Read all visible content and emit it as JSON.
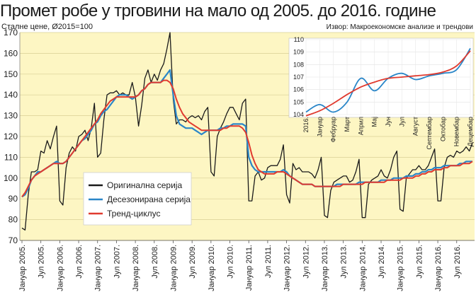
{
  "title": "Промет робе у трговини на мало од 2005. до 2016. године",
  "subtitle": "Сталне цене, Ø2015=100",
  "source": "Извор: Макроекономске анализе и трендови",
  "colors": {
    "plot_bg": "#fdf6c3",
    "original": "#1a1a1a",
    "seasonal": "#2a86c8",
    "trend": "#e03a2f"
  },
  "chart_data": [
    {
      "type": "line",
      "title": "",
      "ylim": [
        70,
        170
      ],
      "yticks": [
        70,
        80,
        90,
        100,
        110,
        120,
        130,
        140,
        150,
        160,
        170
      ],
      "x_start": "2005-01",
      "xtick_labels": [
        "Јануар 2005.",
        "Јул 2005.",
        "Јануар 2006.",
        "Јул 2006.",
        "Јануар 2007.",
        "Јул 2007.",
        "Јануар 2008.",
        "Јул 2008.",
        "Јануар 2009.",
        "Јул 2009.",
        "Јануар 2010.",
        "Јул 2010.",
        "Јануар 2011.",
        "Јул 2011.",
        "Јануар 2012.",
        "Јул 2012.",
        "Јануар 2013.",
        "Јул 2013.",
        "Јануар 2014.",
        "Јул 2014.",
        "Јануар 2015.",
        "Јул 2015.",
        "Јануар 2016.",
        "Јул 2016."
      ],
      "legend": [
        "Оригинална серија",
        "Десезонирана серија",
        "Тренд-циклус"
      ],
      "series": [
        {
          "name": "Оригинална серија",
          "values": [
            76,
            75,
            92,
            103,
            103,
            104,
            113,
            112,
            118,
            114,
            120,
            125,
            89,
            87,
            105,
            112,
            115,
            113,
            120,
            121,
            123,
            118,
            124,
            136,
            110,
            112,
            128,
            140,
            141,
            141,
            142,
            140,
            141,
            140,
            140,
            146,
            139,
            125,
            135,
            148,
            152,
            146,
            150,
            147,
            152,
            155,
            162,
            170,
            138,
            126,
            128,
            128,
            127,
            129,
            130,
            129,
            130,
            128,
            132,
            134,
            103,
            101,
            120,
            124,
            127,
            131,
            134,
            134,
            131,
            128,
            136,
            138,
            89,
            89,
            101,
            103,
            99,
            100,
            105,
            106,
            106,
            106,
            109,
            116,
            92,
            88,
            107,
            104,
            105,
            103,
            103,
            103,
            102,
            100,
            104,
            110,
            82,
            81,
            94,
            98,
            99,
            100,
            101,
            101,
            98,
            99,
            103,
            109,
            81,
            81,
            97,
            99,
            100,
            101,
            104,
            101,
            100,
            104,
            110,
            113,
            85,
            84,
            100,
            102,
            104,
            104,
            106,
            104,
            104,
            106,
            110,
            114,
            89,
            89,
            105,
            110,
            111,
            110,
            113,
            112,
            113,
            115,
            113,
            117
          ]
        },
        {
          "name": "Десезонирана серија",
          "values": [
            91,
            92,
            95,
            99,
            101,
            103,
            103,
            104,
            105,
            106,
            107,
            108,
            107,
            107,
            108,
            110,
            112,
            114,
            116,
            118,
            119,
            121,
            123,
            126,
            127,
            130,
            132,
            133,
            135,
            137,
            139,
            140,
            140,
            140,
            139,
            138,
            139,
            140,
            142,
            143,
            145,
            146,
            146,
            146,
            146,
            148,
            150,
            152,
            140,
            130,
            126,
            125,
            124,
            124,
            124,
            123,
            122,
            121,
            122,
            123,
            123,
            123,
            123,
            124,
            124,
            125,
            125,
            126,
            126,
            126,
            126,
            125,
            110,
            106,
            104,
            103,
            103,
            103,
            103,
            103,
            103,
            103,
            103,
            104,
            103,
            101,
            100,
            99,
            98,
            97,
            97,
            97,
            97,
            96,
            96,
            96,
            96,
            96,
            96,
            96,
            97,
            97,
            97,
            97,
            97,
            97,
            97,
            98,
            98,
            98,
            98,
            98,
            98,
            98,
            99,
            99,
            99,
            99,
            100,
            100,
            100,
            100,
            101,
            101,
            101,
            102,
            102,
            103,
            103,
            104,
            104,
            105,
            105,
            105,
            106,
            106,
            106,
            106,
            106,
            107,
            107,
            108,
            108,
            108
          ]
        },
        {
          "name": "Тренд-циклус",
          "values": [
            91,
            93,
            96,
            99,
            101,
            102,
            103,
            104,
            105,
            106,
            107,
            107,
            107,
            107,
            108,
            110,
            112,
            114,
            116,
            118,
            120,
            122,
            124,
            126,
            128,
            131,
            133,
            135,
            137,
            138,
            139,
            139,
            139,
            139,
            139,
            139,
            139,
            140,
            142,
            143,
            145,
            146,
            146,
            146,
            146,
            147,
            147,
            146,
            143,
            138,
            134,
            131,
            129,
            127,
            126,
            125,
            124,
            123,
            123,
            123,
            123,
            123,
            123,
            123,
            124,
            124,
            125,
            125,
            125,
            125,
            124,
            122,
            117,
            111,
            107,
            104,
            103,
            102,
            102,
            102,
            102,
            103,
            103,
            103,
            102,
            101,
            100,
            99,
            98,
            97,
            97,
            97,
            97,
            96,
            96,
            96,
            96,
            96,
            96,
            96,
            96,
            96,
            97,
            97,
            97,
            97,
            97,
            97,
            97,
            98,
            98,
            98,
            98,
            98,
            98,
            98,
            99,
            99,
            99,
            99,
            99,
            100,
            100,
            100,
            100,
            101,
            101,
            102,
            102,
            103,
            103,
            104,
            104,
            104,
            105,
            105,
            106,
            106,
            106,
            106,
            107,
            107,
            107,
            108
          ]
        }
      ]
    },
    {
      "type": "line",
      "title": "",
      "ylim": [
        104,
        110
      ],
      "yticks": [
        104,
        105,
        106,
        107,
        108,
        109,
        110
      ],
      "categories": [
        "2016.",
        "Јануар",
        "Фебруар",
        "Март",
        "Април",
        "Мај",
        "Јун",
        "Јул",
        "Август",
        "Септембар",
        "Октобар",
        "Новембар",
        "Децембар"
      ],
      "series": [
        {
          "name": "Десезонирана серија",
          "values": [
            104.2,
            104.8,
            104.2,
            105.0,
            106.9,
            105.9,
            106.9,
            107.3,
            106.8,
            107.1,
            107.3,
            107.6,
            109.3
          ]
        },
        {
          "name": "Тренд-циклус",
          "values": [
            103.9,
            104.3,
            104.9,
            105.6,
            106.2,
            106.6,
            106.9,
            107.0,
            107.1,
            107.2,
            107.4,
            107.9,
            109.1
          ]
        }
      ]
    }
  ]
}
